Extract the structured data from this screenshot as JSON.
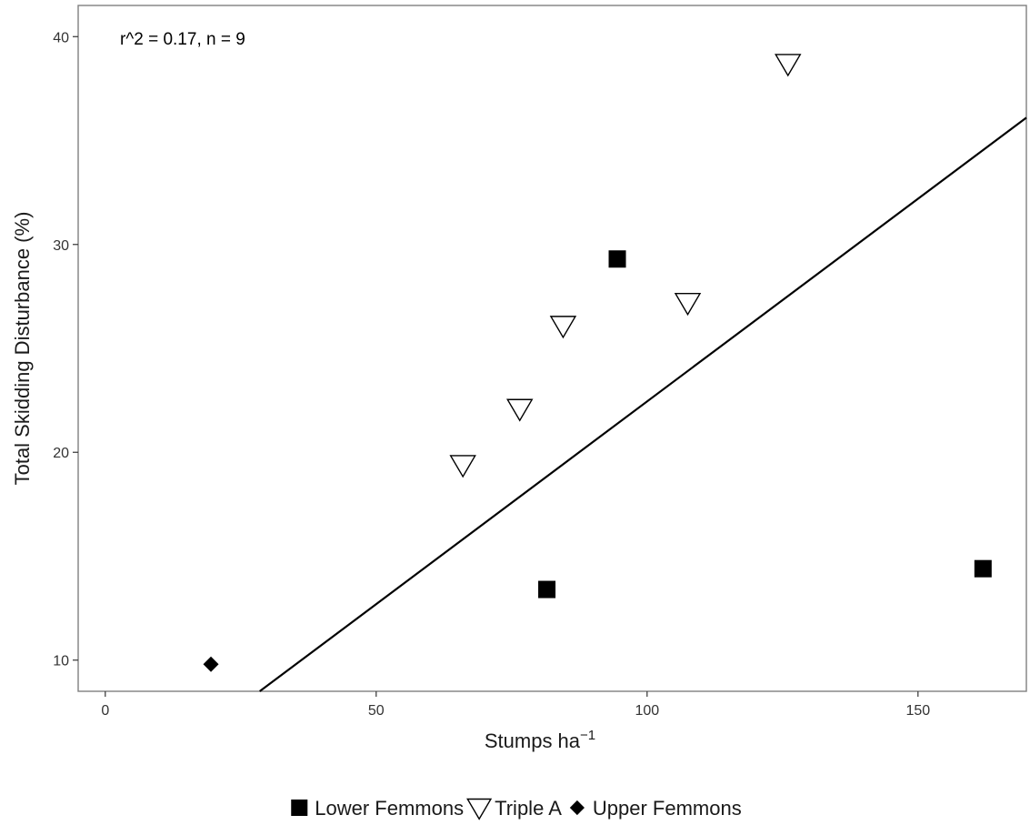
{
  "chart_data": {
    "type": "scatter",
    "xlabel": "Stumps ha",
    "xlabel_superscript": "−1",
    "ylabel": "Total Skidding Disturbance (%)",
    "annotation": "r^2 = 0.17, n = 9",
    "xlim": [
      -5,
      170
    ],
    "ylim": [
      8.5,
      41.5
    ],
    "x_ticks": [
      0,
      50,
      100,
      150
    ],
    "y_ticks": [
      10,
      20,
      30,
      40
    ],
    "grid": false,
    "legend_position": "bottom",
    "series": [
      {
        "name": "Lower Femmons",
        "marker": "filled-square",
        "points": [
          {
            "x": 94.5,
            "y": 29.3
          },
          {
            "x": 81.5,
            "y": 13.4
          },
          {
            "x": 162,
            "y": 14.4
          }
        ]
      },
      {
        "name": "Triple A",
        "marker": "open-triangle-down",
        "points": [
          {
            "x": 66,
            "y": 19.4
          },
          {
            "x": 76.5,
            "y": 22.1
          },
          {
            "x": 84.5,
            "y": 26.1
          },
          {
            "x": 107.5,
            "y": 27.2
          },
          {
            "x": 126,
            "y": 38.7
          }
        ]
      },
      {
        "name": "Upper Femmons",
        "marker": "filled-diamond",
        "points": [
          {
            "x": 19.5,
            "y": 9.8
          }
        ]
      }
    ],
    "fit_line": {
      "type": "linear",
      "x_start": 28.5,
      "y_start": 8.5,
      "x_end": 170,
      "y_end": 36.1
    }
  }
}
